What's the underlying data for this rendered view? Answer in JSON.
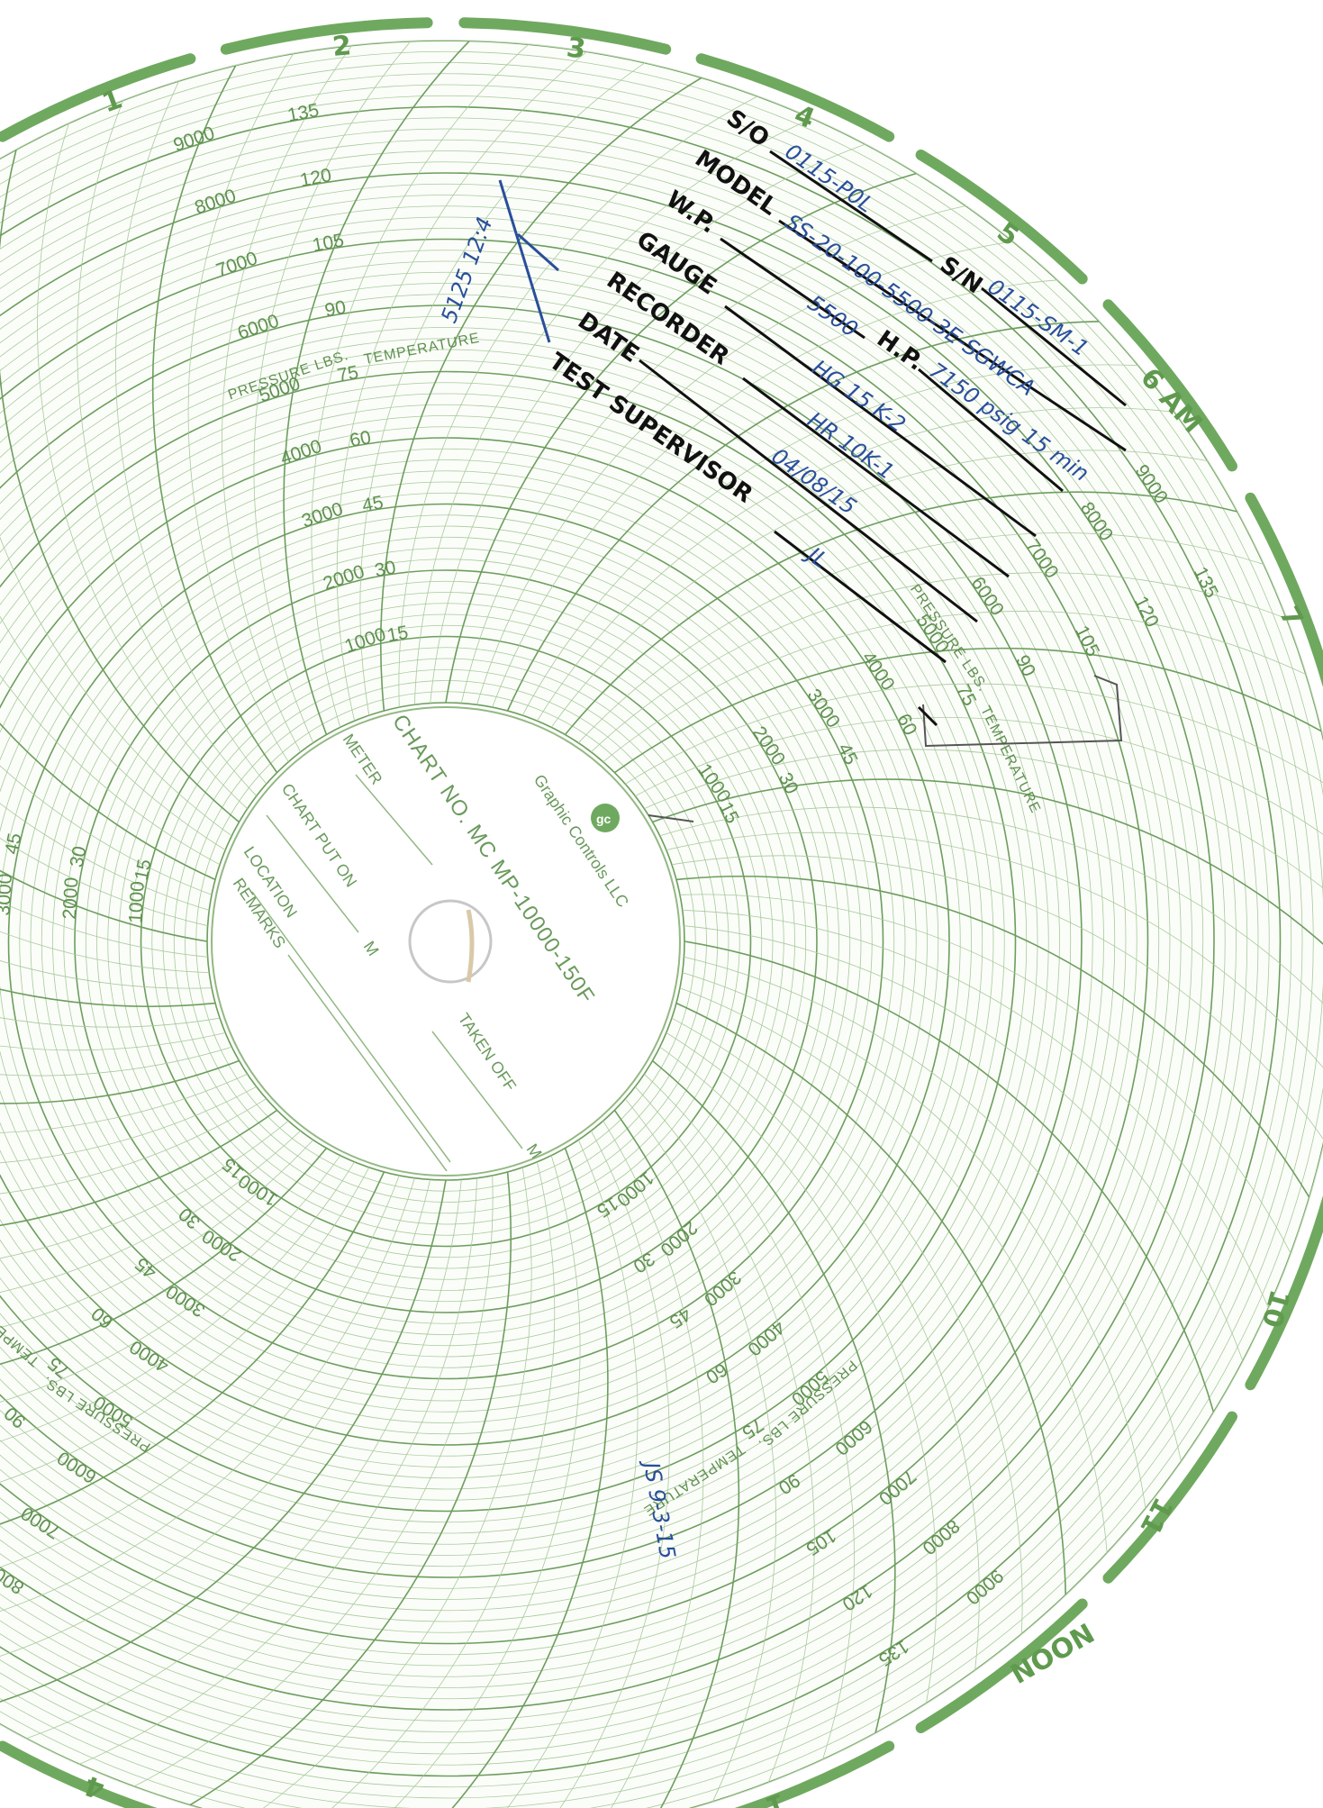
{
  "chart": {
    "chart_no": "CHART NO. MC MP-10000-150F",
    "brand": "Graphic Controls LLC",
    "hub_fields": [
      "METER",
      "CHART PUT ON",
      "LOCATION",
      "REMARKS",
      "TAKEN OFF"
    ],
    "hub_marks": [
      "M",
      "M"
    ],
    "pressure_title": "PRESSURE LBS.",
    "temperature_title": "TEMPERATURE",
    "pressure_scale": [
      "1000",
      "2000",
      "3000",
      "4000",
      "5000",
      "6000",
      "7000",
      "8000",
      "9000"
    ],
    "temperature_scale": [
      "15",
      "30",
      "45",
      "60",
      "75",
      "90",
      "105",
      "120",
      "135"
    ],
    "hour_labels": [
      "1",
      "2",
      "3",
      "4",
      "5",
      "6 AM",
      "7",
      "10",
      "11",
      "NOON",
      "1",
      "4"
    ]
  },
  "form": {
    "fields": [
      {
        "label": "S/O",
        "value": "0115-P0L"
      },
      {
        "label": "MODEL",
        "value": "SS-20-100-5500-3E-SGWCA"
      },
      {
        "label": "W.P.",
        "value": "5500"
      },
      {
        "label": "GAUGE",
        "value": "HG 15 K-2"
      },
      {
        "label": "RECORDER",
        "value": "HR 10K-1"
      },
      {
        "label": "DATE",
        "value": "04/08/15"
      },
      {
        "label": "TEST SUPERVISOR",
        "value": "JL"
      }
    ],
    "sn_label": "S/N",
    "sn_value": "0115-SM-1",
    "hp_label": "H.P.",
    "hp_value": "7150 psig 15 min"
  },
  "handwriting": {
    "note_top": "5125 12:4",
    "note_bottom": "JS 9-3-15"
  },
  "colors": {
    "grid": "#93b884",
    "hour_band": "#6fa95f",
    "ink": "#2a4f9a",
    "form_text": "#111111"
  }
}
